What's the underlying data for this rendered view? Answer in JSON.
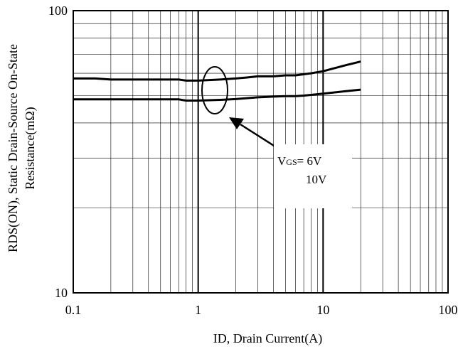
{
  "chart_data": {
    "type": "line",
    "title": "",
    "xlabel": "ID, Drain Current(A)",
    "ylabel_line1": "RDS(ON), Static Drain-Source On-State",
    "ylabel_line2": "Resistance(mΩ)",
    "xscale": "log",
    "yscale": "log",
    "xlim": [
      0.1,
      100
    ],
    "ylim": [
      10,
      100
    ],
    "x_ticks": [
      "0.1",
      "1",
      "10",
      "100"
    ],
    "y_ticks": [
      "10",
      "100"
    ],
    "grid": true,
    "series": [
      {
        "name": "VGS=6V",
        "x": [
          0.1,
          0.15,
          0.2,
          0.3,
          0.5,
          0.7,
          0.8,
          1.0,
          1.5,
          2.0,
          2.5,
          3.0,
          4.0,
          5.0,
          6.0,
          7.0,
          8.0,
          10.0,
          15.0,
          20.0
        ],
        "y": [
          57.5,
          57.5,
          57.0,
          57.0,
          57.0,
          57.0,
          56.5,
          56.5,
          57.0,
          57.5,
          58.0,
          58.5,
          58.5,
          59.0,
          59.0,
          59.5,
          60.0,
          61.0,
          64.0,
          66.0
        ]
      },
      {
        "name": "VGS=10V",
        "x": [
          0.1,
          0.15,
          0.2,
          0.3,
          0.5,
          0.7,
          0.8,
          1.0,
          1.5,
          2.0,
          2.5,
          3.0,
          4.0,
          5.0,
          6.0,
          7.0,
          8.0,
          10.0,
          15.0,
          20.0
        ],
        "y": [
          48.5,
          48.5,
          48.5,
          48.5,
          48.5,
          48.5,
          48.0,
          48.0,
          48.3,
          48.6,
          49.0,
          49.3,
          49.6,
          49.8,
          49.8,
          50.0,
          50.3,
          50.8,
          51.8,
          52.5
        ]
      }
    ],
    "annotation": {
      "line1_main": "V",
      "line1_sub": "GS",
      "line1_rest": "= 6V",
      "line2": "10V"
    }
  }
}
